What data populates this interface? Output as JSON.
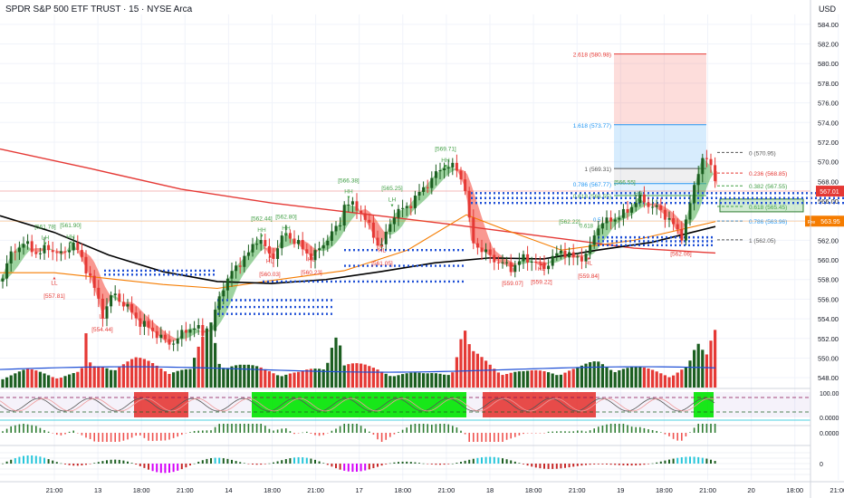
{
  "header": {
    "symbol_title": "SPDR S&P 500 ETF TRUST · 15 · NYSE Arca",
    "currency": "USD"
  },
  "chart_data": {
    "type": "candlestick",
    "title": "SPDR S&P 500 ETF TRUST · 15 · NYSE Arca",
    "ylim": [
      547,
      585
    ],
    "y_ticks": [
      "584.00",
      "582.00",
      "580.00",
      "578.00",
      "576.00",
      "574.00",
      "572.00",
      "570.00",
      "568.00",
      "566.00",
      "564.00",
      "562.00",
      "560.00",
      "558.00",
      "556.00",
      "554.00",
      "552.00",
      "550.00",
      "548.00"
    ],
    "x_ticks": [
      "21:00",
      "13",
      "18:00",
      "21:00",
      "14",
      "18:00",
      "21:00",
      "17",
      "18:00",
      "21:00",
      "18",
      "18:00",
      "21:00",
      "19",
      "18:00",
      "21:00",
      "20",
      "18:00",
      "21:00"
    ],
    "price_path": [
      [
        0,
        557.8
      ],
      [
        12,
        560.5
      ],
      [
        25,
        561.8
      ],
      [
        40,
        560.7
      ],
      [
        55,
        561.2
      ],
      [
        70,
        560.4
      ],
      [
        80,
        561.9
      ],
      [
        90,
        560.1
      ],
      [
        100,
        558.2
      ],
      [
        108,
        556.0
      ],
      [
        113,
        554.4
      ],
      [
        125,
        556.6
      ],
      [
        140,
        555.2
      ],
      [
        155,
        553.6
      ],
      [
        170,
        552.7
      ],
      [
        185,
        551.5
      ],
      [
        195,
        551.8
      ],
      [
        205,
        552.9
      ],
      [
        215,
        553.1
      ],
      [
        225,
        552.5
      ],
      [
        235,
        552.9
      ],
      [
        240,
        556.0
      ],
      [
        250,
        557.8
      ],
      [
        262,
        559.5
      ],
      [
        275,
        560.7
      ],
      [
        285,
        562.4
      ],
      [
        300,
        560.1
      ],
      [
        315,
        562.8
      ],
      [
        330,
        561.5
      ],
      [
        345,
        560.2
      ],
      [
        360,
        562.0
      ],
      [
        375,
        563.6
      ],
      [
        380,
        565.7
      ],
      [
        395,
        565.4
      ],
      [
        410,
        563.0
      ],
      [
        420,
        561.1
      ],
      [
        435,
        564.7
      ],
      [
        450,
        565.4
      ],
      [
        465,
        567.0
      ],
      [
        480,
        568.6
      ],
      [
        492,
        569.7
      ],
      [
        505,
        569.2
      ],
      [
        515,
        567.0
      ],
      [
        520,
        562.0
      ],
      [
        535,
        560.8
      ],
      [
        550,
        559.8
      ],
      [
        565,
        559.2
      ],
      [
        580,
        560.3
      ],
      [
        600,
        559.2
      ],
      [
        620,
        561.0
      ],
      [
        632,
        560.2
      ],
      [
        648,
        560.4
      ],
      [
        660,
        563.5
      ],
      [
        675,
        564.1
      ],
      [
        690,
        564.7
      ],
      [
        705,
        566.3
      ],
      [
        715,
        565.7
      ],
      [
        725,
        565.3
      ],
      [
        740,
        564.1
      ],
      [
        752,
        562.2
      ],
      [
        765,
        566.7
      ],
      [
        775,
        570.6
      ],
      [
        785,
        569.5
      ],
      [
        792,
        567.5
      ]
    ],
    "volume_path": [
      [
        0,
        0.55
      ],
      [
        30,
        0.8
      ],
      [
        60,
        0.6
      ],
      [
        90,
        0.7
      ],
      [
        96,
        2.6
      ],
      [
        100,
        0.9
      ],
      [
        120,
        1.1
      ],
      [
        150,
        1.3
      ],
      [
        180,
        1.0
      ],
      [
        210,
        0.8
      ],
      [
        235,
        3.3
      ],
      [
        240,
        1.4
      ],
      [
        270,
        1.0
      ],
      [
        300,
        0.8
      ],
      [
        330,
        0.7
      ],
      [
        360,
        0.9
      ],
      [
        372,
        3.7
      ],
      [
        380,
        1.2
      ],
      [
        410,
        0.9
      ],
      [
        440,
        0.7
      ],
      [
        470,
        0.6
      ],
      [
        500,
        0.9
      ],
      [
        512,
        2.8
      ],
      [
        520,
        1.6
      ],
      [
        550,
        0.9
      ],
      [
        580,
        0.7
      ],
      [
        610,
        0.8
      ],
      [
        640,
        0.9
      ],
      [
        660,
        1.2
      ],
      [
        700,
        0.9
      ],
      [
        740,
        0.7
      ],
      [
        760,
        1.0
      ],
      [
        770,
        1.9
      ],
      [
        780,
        1.4
      ],
      [
        790,
        3.0
      ]
    ],
    "price_labels": [
      {
        "text": "[557.81]",
        "type": "low",
        "x": 60,
        "y": 557.8
      },
      {
        "text": "[554.44]",
        "type": "low",
        "x": 113,
        "y": 554.4
      },
      {
        "text": "[561.78]",
        "type": "high",
        "x": 50,
        "y": 562.1
      },
      {
        "text": "[561.90]",
        "type": "high",
        "x": 78,
        "y": 562.2
      },
      {
        "text": "[562.44]",
        "type": "high",
        "x": 289,
        "y": 562.9
      },
      {
        "text": "[562.80]",
        "type": "high",
        "x": 316,
        "y": 563.1
      },
      {
        "text": "[560.03]",
        "type": "low",
        "x": 298,
        "y": 560.0
      },
      {
        "text": "[560.23]",
        "type": "low",
        "x": 344,
        "y": 560.2
      },
      {
        "text": "[566.38]",
        "type": "high",
        "x": 385,
        "y": 566.8
      },
      {
        "text": "[565.25]",
        "type": "high",
        "x": 433,
        "y": 566.0
      },
      {
        "text": "[561.05]",
        "type": "low",
        "x": 422,
        "y": 561.1
      },
      {
        "text": "[569.71]",
        "type": "high",
        "x": 492,
        "y": 570.0
      },
      {
        "text": "[559.07]",
        "type": "low",
        "x": 566,
        "y": 559.1
      },
      {
        "text": "[559.22]",
        "type": "low",
        "x": 598,
        "y": 559.2
      },
      {
        "text": "[559.84]",
        "type": "low",
        "x": 650,
        "y": 559.8
      },
      {
        "text": "[562.22]",
        "type": "high",
        "x": 629,
        "y": 562.6
      },
      {
        "text": "[566.55]",
        "type": "high",
        "x": 690,
        "y": 566.6
      },
      {
        "text": "[562.06]",
        "type": "low",
        "x": 752,
        "y": 562.1
      }
    ],
    "structure_labels": [
      {
        "text": "LH",
        "x": 50,
        "y": 561.7,
        "type": "high"
      },
      {
        "text": "HH",
        "x": 78,
        "y": 561.8,
        "type": "high"
      },
      {
        "text": "LL",
        "x": 60,
        "y": 558.4,
        "type": "low"
      },
      {
        "text": "LL",
        "x": 113,
        "y": 555.0,
        "type": "low"
      },
      {
        "text": "HH",
        "x": 289,
        "y": 562.5,
        "type": "high"
      },
      {
        "text": "HH",
        "x": 316,
        "y": 562.7,
        "type": "high"
      },
      {
        "text": "HL",
        "x": 298,
        "y": 560.6,
        "type": "low"
      },
      {
        "text": "HL",
        "x": 344,
        "y": 560.8,
        "type": "low"
      },
      {
        "text": "HH",
        "x": 385,
        "y": 566.4,
        "type": "high"
      },
      {
        "text": "LH",
        "x": 433,
        "y": 565.6,
        "type": "high"
      },
      {
        "text": "HL",
        "x": 422,
        "y": 561.7,
        "type": "low"
      },
      {
        "text": "HH",
        "x": 492,
        "y": 569.6,
        "type": "high"
      },
      {
        "text": "LL",
        "x": 566,
        "y": 559.7,
        "type": "low"
      },
      {
        "text": "HL",
        "x": 598,
        "y": 559.8,
        "type": "low"
      },
      {
        "text": "HL",
        "x": 650,
        "y": 560.4,
        "type": "low"
      },
      {
        "text": "HH",
        "x": 705,
        "y": 566.2,
        "type": "high"
      }
    ],
    "fib_levels": [
      {
        "label": "2.618 (580.98)",
        "value": 580.98,
        "color": "#e53935"
      },
      {
        "label": "1.618 (573.77)",
        "value": 573.77,
        "color": "#2196f3"
      },
      {
        "label": "1 (569.31)",
        "value": 569.31,
        "color": "#555555"
      },
      {
        "label": "0.786 (567.77)",
        "value": 567.77,
        "color": "#2196f3"
      },
      {
        "label": "0.618 (566.55)",
        "value": 566.55,
        "color": "#43a047"
      }
    ],
    "fib_right_levels": [
      {
        "label": "0 (570.95)",
        "value": 570.95,
        "color": "#555555"
      },
      {
        "label": "0.236 (568.85)",
        "value": 568.85,
        "color": "#e53935"
      },
      {
        "label": "0.382 (567.55)",
        "value": 567.55,
        "color": "#43a047"
      },
      {
        "label": "0.618 (565.45)",
        "value": 565.45,
        "color": "#43a047"
      },
      {
        "label": "0.786 (563.96)",
        "value": 563.96,
        "color": "#2196f3"
      },
      {
        "label": "1 (562.05)",
        "value": 562.05,
        "color": "#555555"
      }
    ],
    "fib_small_labels": [
      "0.618",
      "0.5"
    ],
    "dotted_levels": [
      {
        "value": 566.8,
        "x1": 520,
        "x2": 932
      },
      {
        "value": 566.3,
        "x1": 520,
        "x2": 932
      },
      {
        "value": 565.8,
        "x1": 520,
        "x2": 932
      },
      {
        "value": 562.3,
        "x1": 660,
        "x2": 790
      },
      {
        "value": 561.9,
        "x1": 660,
        "x2": 790
      },
      {
        "value": 561.5,
        "x1": 660,
        "x2": 790
      },
      {
        "value": 561.0,
        "x1": 380,
        "x2": 515
      },
      {
        "value": 559.4,
        "x1": 380,
        "x2": 515
      },
      {
        "value": 557.8,
        "x1": 290,
        "x2": 515
      },
      {
        "value": 558.9,
        "x1": 115,
        "x2": 240
      },
      {
        "value": 558.5,
        "x1": 115,
        "x2": 240
      },
      {
        "value": 555.9,
        "x1": 240,
        "x2": 370
      },
      {
        "value": 555.2,
        "x1": 240,
        "x2": 370
      },
      {
        "value": 554.5,
        "x1": 240,
        "x2": 370
      }
    ],
    "axis_price_tags": [
      {
        "text": "567.01",
        "value": 567.01,
        "color": "#e53935"
      },
      {
        "text": "Pre",
        "value": 563.95,
        "color": "#f57c00"
      },
      {
        "text": "563.95",
        "value": 563.95,
        "color": "#f57c00"
      }
    ],
    "oscillator_ticks": [
      "100.00",
      "0.0000"
    ],
    "lower_ticks": [
      "0.0000",
      "0"
    ],
    "stoch_zones": [
      {
        "x1": 148,
        "x2": 208,
        "color": "#e53935"
      },
      {
        "x1": 278,
        "x2": 515,
        "color": "#00e600"
      },
      {
        "x1": 533,
        "x2": 658,
        "color": "#e53935"
      },
      {
        "x1": 766,
        "x2": 788,
        "color": "#00e600"
      }
    ],
    "colors": {
      "up": "#1b5e20",
      "down": "#e53935",
      "ma_red": "#e53935",
      "ma_black": "#000000",
      "ma_orange": "#f57c00",
      "vol_ma": "#1e4fd6"
    }
  }
}
